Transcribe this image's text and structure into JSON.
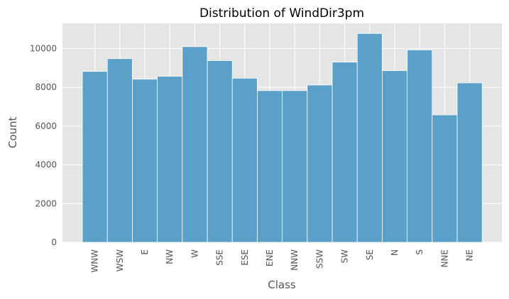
{
  "chart_data": {
    "type": "bar",
    "title": "Distribution of WindDir3pm",
    "xlabel": "Class",
    "ylabel": "Count",
    "categories": [
      "WNW",
      "WSW",
      "E",
      "NW",
      "W",
      "SSE",
      "ESE",
      "ENE",
      "NNW",
      "SSW",
      "SW",
      "SE",
      "N",
      "S",
      "NNE",
      "NE"
    ],
    "values": [
      8820,
      9480,
      8420,
      8570,
      10100,
      9380,
      8470,
      7830,
      7830,
      8120,
      9300,
      10780,
      8860,
      9930,
      6580,
      8230
    ],
    "ylim": [
      0,
      11300
    ],
    "yticks": [
      0,
      2000,
      4000,
      6000,
      8000,
      10000
    ],
    "ytick_labels": [
      "0",
      "2000",
      "4000",
      "6000",
      "8000",
      "10000"
    ],
    "grid": true,
    "colors": {
      "bar": "#5ba0c8",
      "bar_edge": "#ffffff",
      "plot_background": "#e5e5e5",
      "grid": "#ffffff"
    }
  }
}
